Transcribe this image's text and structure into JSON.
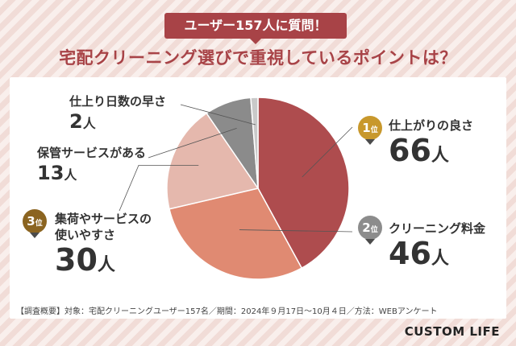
{
  "badge": "ユーザー157人に質問！",
  "headline": "宅配クリーニング選びで重視しているポイントは？",
  "colors": {
    "accent": "#a84347",
    "gold": "#c8982c",
    "silver": "#8c8c8c",
    "bronze": "#8b6420"
  },
  "chart_data": {
    "type": "pie",
    "unit": "人",
    "categories": [
      "仕上がりの良さ",
      "クリーニング料金",
      "集荷やサービスの使いやすさ",
      "保管サービスがある",
      "仕上り日数の早さ"
    ],
    "values": [
      66,
      46,
      30,
      13,
      2
    ],
    "colors": [
      "#ae4c4e",
      "#e08a72",
      "#e5b8ad",
      "#8b8b8b",
      "#c9c9c9"
    ],
    "ranks": {
      "first": "1",
      "second": "2",
      "third": "3",
      "suffix": "位"
    }
  },
  "labels": {
    "first_name": "仕上がりの良さ",
    "first_count": "66",
    "first_unit": "人",
    "second_name": "クリーニング料金",
    "second_count": "46",
    "second_unit": "人",
    "third_name_line1": "集荷やサービスの",
    "third_name_line2": "使いやすさ",
    "third_count": "30",
    "third_unit": "人",
    "fourth_name": "保管サービスがある",
    "fourth_count": "13",
    "fourth_unit": "人",
    "fifth_name": "仕上り日数の早さ",
    "fifth_count": "2",
    "fifth_unit": "人"
  },
  "footnote": "【調査概要】対象：宅配クリーニングユーザー157名／期間：2024年９月17日〜10月４日／方法：WEBアンケート",
  "brand": "CUSTOM LIFE"
}
